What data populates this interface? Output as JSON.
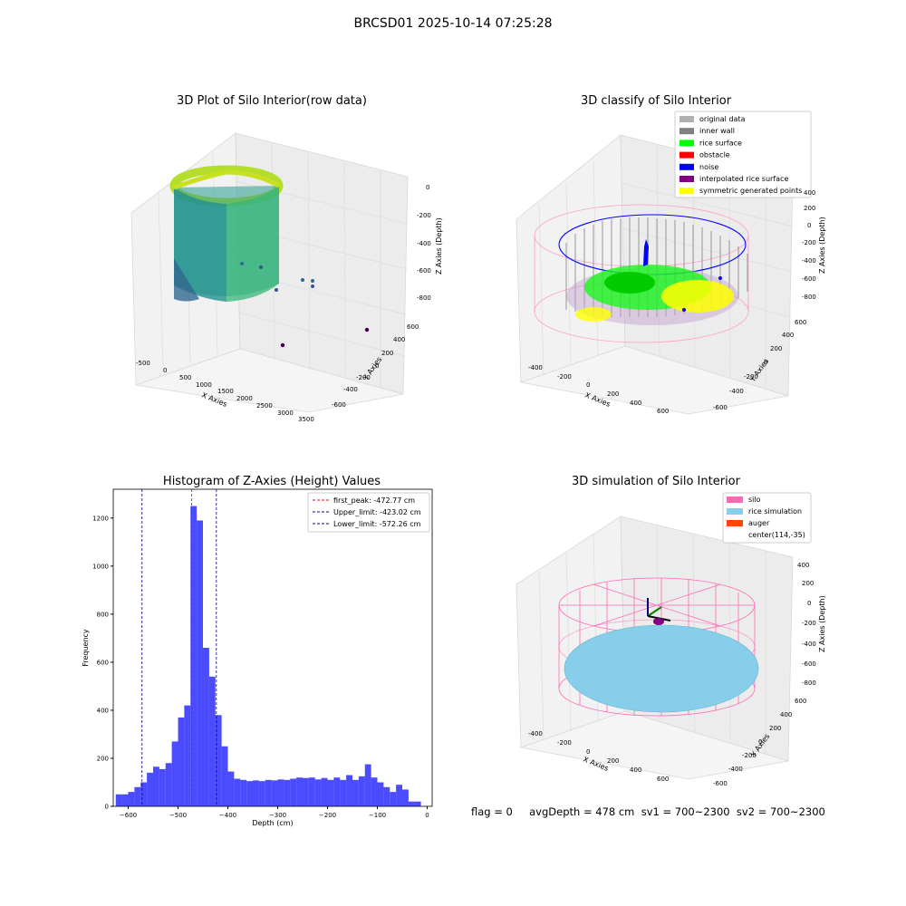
{
  "figure": {
    "suptitle": "BRCSD01 2025-10-14 07:25:28",
    "footer": "flag = 0     avgDepth = 478 cm  sv1 = 700~2300  sv2 = 700~2300"
  },
  "panels": {
    "raw": {
      "title": "3D Plot of Silo Interior(row data)",
      "xlabel": "X Axies",
      "ylabel": "Y Axies",
      "zlabel": "Z Axies (Depth)",
      "xticks": [
        "-500",
        "0",
        "500",
        "1000",
        "1500",
        "2000",
        "2500",
        "3000",
        "3500"
      ],
      "yticks": [
        "-600",
        "-400",
        "-200",
        "0",
        "200",
        "400",
        "600"
      ],
      "zticks": [
        "0",
        "-200",
        "-400",
        "-600",
        "-800"
      ]
    },
    "classify": {
      "title": "3D classify of Silo Interior",
      "xlabel": "X Axies",
      "ylabel": "Y Axies",
      "zlabel": "Z Axies (Depth)",
      "xticks": [
        "-400",
        "-200",
        "0",
        "200",
        "400",
        "600"
      ],
      "yticks": [
        "-600",
        "-400",
        "-200",
        "0",
        "200",
        "400",
        "600"
      ],
      "zticks": [
        "400",
        "200",
        "0",
        "-200",
        "-400",
        "-600",
        "-800"
      ],
      "legend": [
        {
          "label": "original data",
          "color": "#b0b0b0"
        },
        {
          "label": "inner wall",
          "color": "#808080"
        },
        {
          "label": "rice surface",
          "color": "#00ff00"
        },
        {
          "label": "obstacle",
          "color": "#ff0000"
        },
        {
          "label": "noise",
          "color": "#0000ff"
        },
        {
          "label": "interpolated rice surface",
          "color": "#800080"
        },
        {
          "label": "symmetric generated points",
          "color": "#ffff00"
        }
      ]
    },
    "simulation": {
      "title": "3D simulation of Silo Interior",
      "xlabel": "X Axies",
      "ylabel": "Y Axies",
      "zlabel": "Z Axies (Depth)",
      "xticks": [
        "-400",
        "-200",
        "0",
        "200",
        "400",
        "600"
      ],
      "yticks": [
        "-600",
        "-400",
        "-200",
        "0",
        "200",
        "400",
        "600"
      ],
      "zticks": [
        "400",
        "200",
        "0",
        "-200",
        "-400",
        "-600",
        "-800"
      ],
      "legend": [
        {
          "label": "silo",
          "color": "#ff69b4"
        },
        {
          "label": "rice simulation",
          "color": "#87ceeb"
        },
        {
          "label": "auger",
          "color": "#ff4500"
        },
        {
          "label": "center(114,-35)",
          "color": ""
        }
      ]
    }
  },
  "chart_data": {
    "type": "bar",
    "title": "Histogram of Z-Axies (Height) Values",
    "xlabel": "Depth (cm)",
    "ylabel": "Frequency",
    "xlim": [
      -630,
      10
    ],
    "ylim": [
      0,
      1320
    ],
    "bin_width": 12.5,
    "bin_start": -625,
    "bar_color": "#0000ff",
    "xticks": [
      -600,
      -500,
      -400,
      -300,
      -200,
      -100,
      0
    ],
    "yticks": [
      0,
      200,
      400,
      600,
      800,
      1000,
      1200
    ],
    "values": [
      50,
      50,
      60,
      80,
      100,
      140,
      165,
      155,
      180,
      270,
      370,
      420,
      1250,
      1190,
      660,
      540,
      380,
      250,
      145,
      115,
      110,
      105,
      108,
      105,
      110,
      108,
      112,
      110,
      115,
      120,
      118,
      120,
      112,
      118,
      110,
      120,
      110,
      130,
      110,
      125,
      175,
      120,
      100,
      80,
      60,
      90,
      70,
      20,
      20
    ],
    "vlines": [
      {
        "label": "first_peak: -472.77 cm",
        "x": -472.77,
        "color": "#ff0000"
      },
      {
        "label": "Upper_limit: -423.02 cm",
        "x": -423.02,
        "color": "#00008b"
      },
      {
        "label": "Lower_limit: -572.26 cm",
        "x": -572.26,
        "color": "#00008b"
      }
    ]
  }
}
